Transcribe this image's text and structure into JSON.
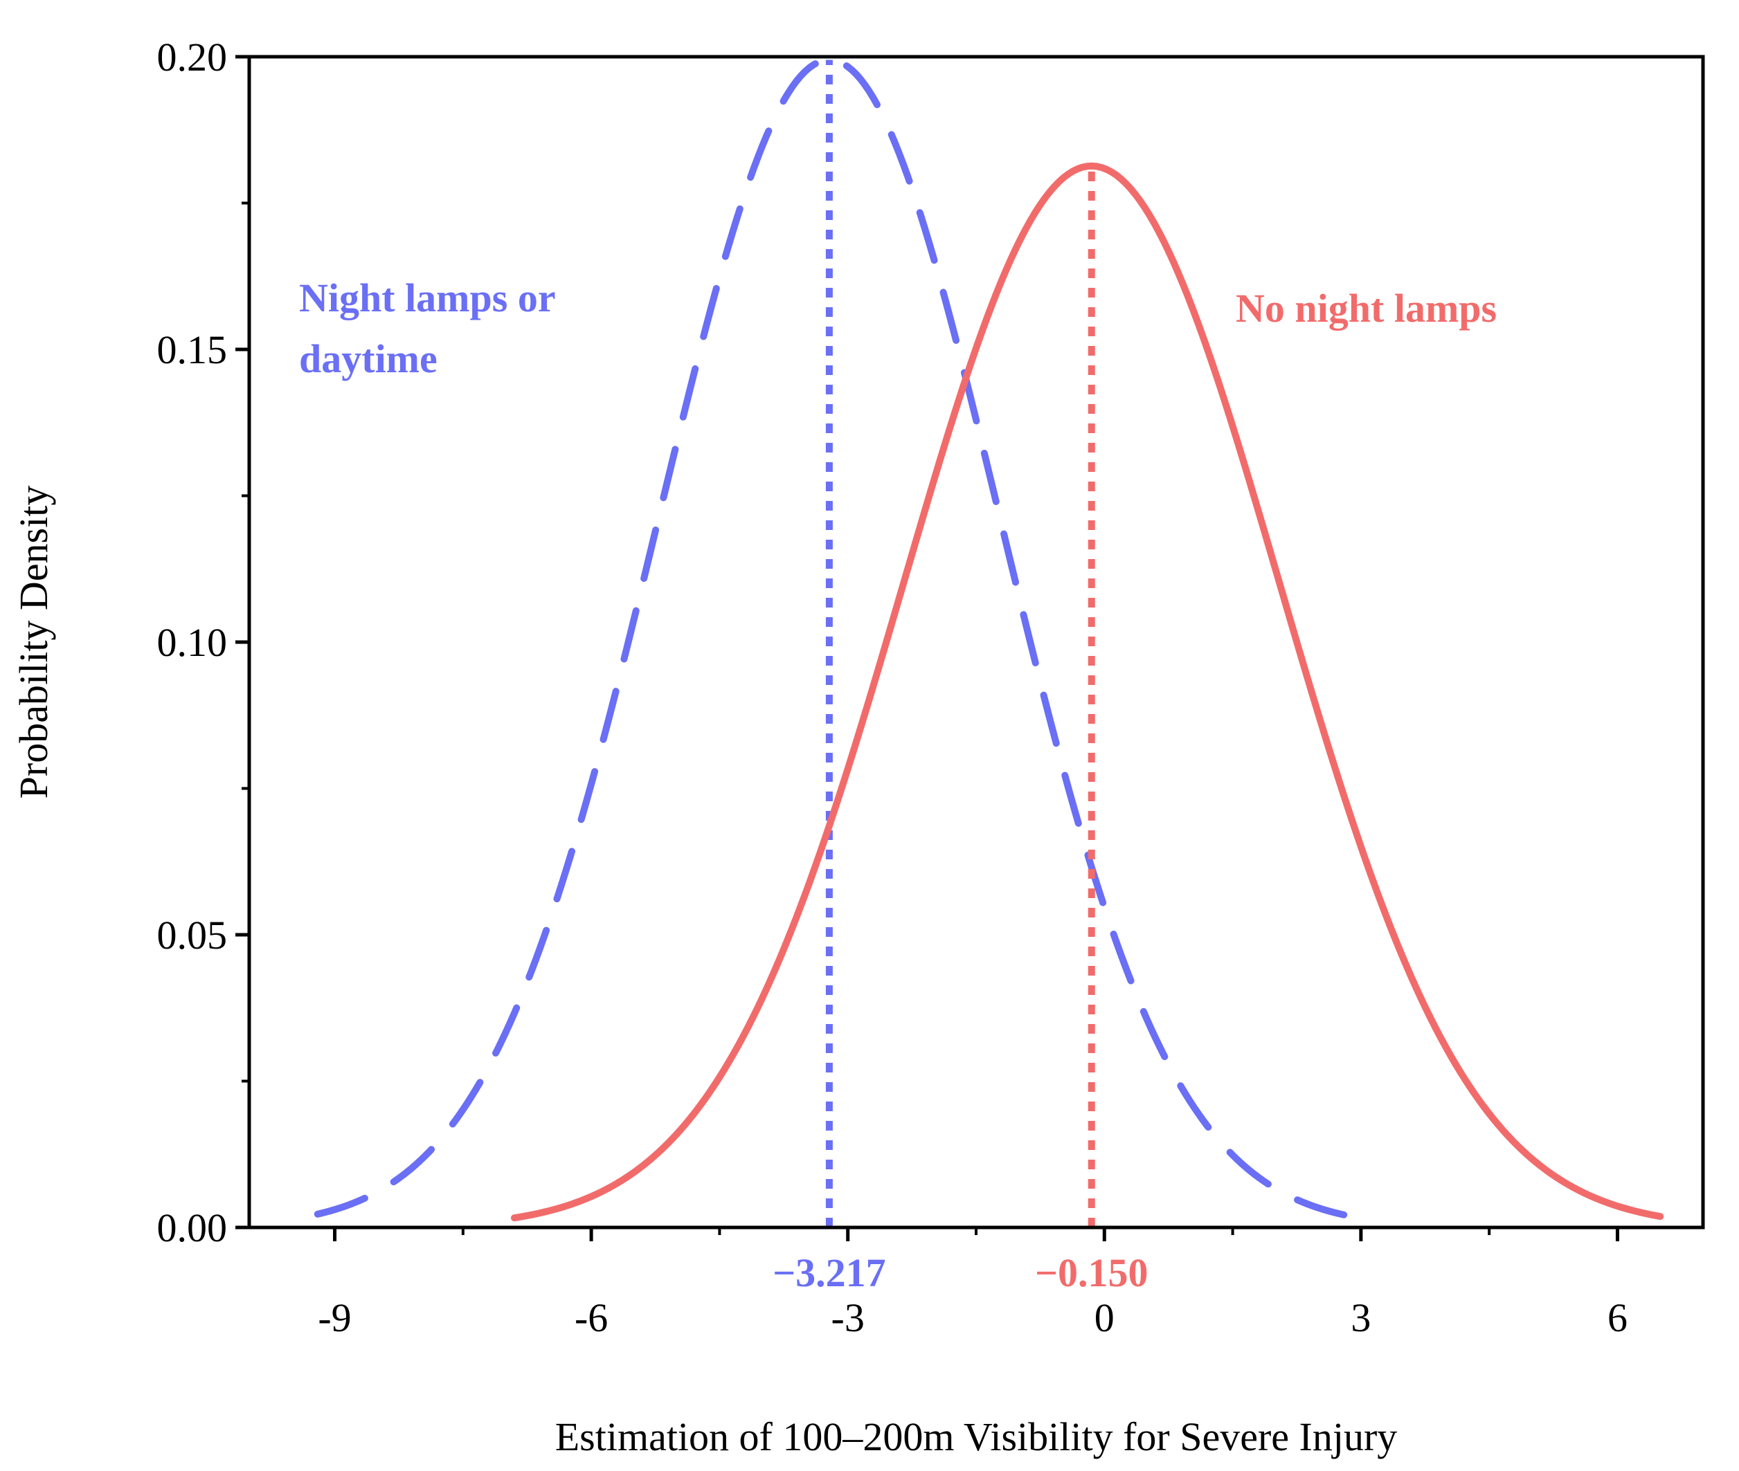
{
  "chart_data": {
    "type": "line",
    "title": "",
    "xlabel": "Estimation of 100–200m Visibility for Severe Injury",
    "ylabel": "Probability Density",
    "xlim": [
      -10,
      7
    ],
    "ylim": [
      0,
      0.2
    ],
    "x_ticks": [
      "-9",
      "-6",
      "-3",
      "0",
      "3",
      "6"
    ],
    "y_ticks": [
      "0.00",
      "0.05",
      "0.10",
      "0.15",
      "0.20"
    ],
    "grid": false,
    "series": [
      {
        "name": "Night lamps or daytime",
        "label_lines": [
          "Night lamps or",
          "daytime"
        ],
        "distribution": "normal",
        "mean": -3.217,
        "std": 2.0,
        "x_range": [
          -9.2,
          2.8
        ],
        "style": "dashed",
        "color": "#6a6ff5",
        "mean_label": "−3.217"
      },
      {
        "name": "No night lamps",
        "label_lines": [
          "No night lamps"
        ],
        "distribution": "normal",
        "mean": -0.15,
        "std": 2.2,
        "x_range": [
          -6.9,
          6.5
        ],
        "style": "solid",
        "color": "#f26b6b",
        "mean_label": "−0.150"
      }
    ]
  }
}
